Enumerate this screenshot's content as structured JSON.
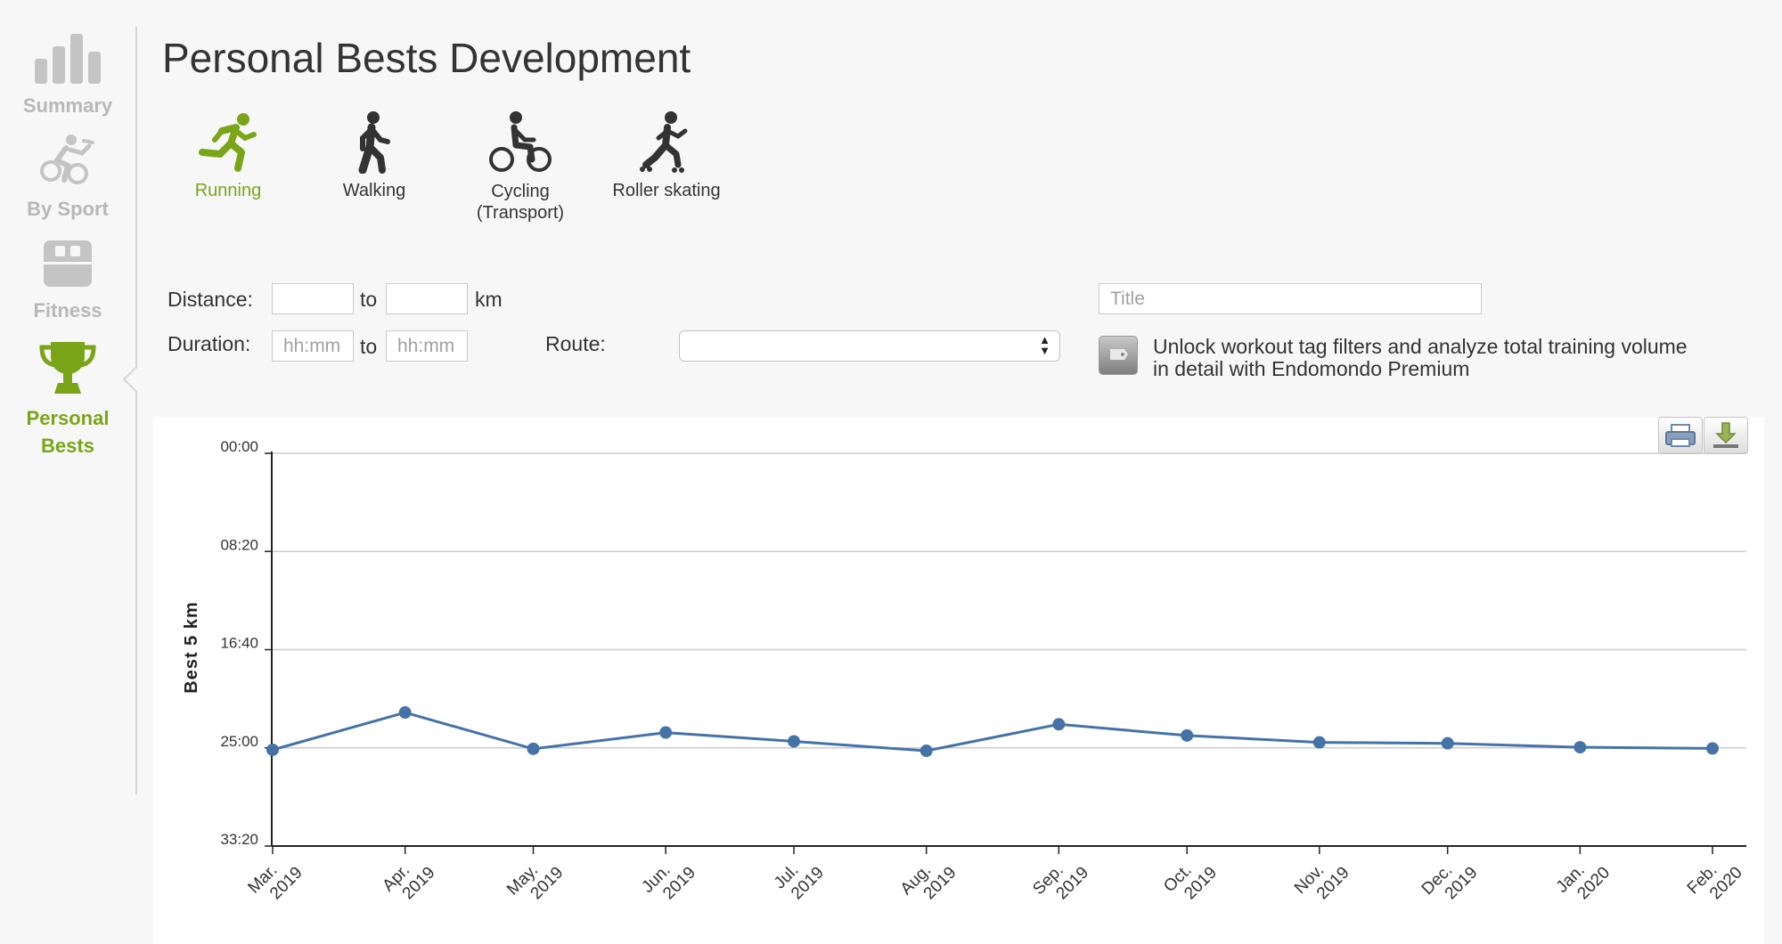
{
  "sidebar": {
    "items": [
      {
        "label": "Summary",
        "icon": "bar-chart-icon",
        "active": false
      },
      {
        "label": "By Sport",
        "icon": "triathlon-icon",
        "active": false
      },
      {
        "label": "Fitness",
        "icon": "scale-icon",
        "active": false
      },
      {
        "label_line1": "Personal",
        "label_line2": "Bests",
        "icon": "trophy-icon",
        "active": true
      }
    ]
  },
  "header": {
    "title": "Personal Bests Development"
  },
  "sports": [
    {
      "label": "Running",
      "icon": "running-icon",
      "active": true
    },
    {
      "label": "Walking",
      "icon": "walking-icon",
      "active": false
    },
    {
      "label_line1": "Cycling",
      "label_line2": "(Transport)",
      "icon": "cycling-icon",
      "active": false
    },
    {
      "label": "Roller skating",
      "icon": "roller-skating-icon",
      "active": false
    }
  ],
  "filters": {
    "distance_label": "Distance:",
    "to_label": "to",
    "km_label": "km",
    "duration_label": "Duration:",
    "duration_from_placeholder": "hh:mm",
    "duration_to_placeholder": "hh:mm",
    "route_label": "Route:",
    "route_value": "",
    "title_placeholder": "Title",
    "premium_text": "Unlock workout tag filters and analyze total training volume in detail with Endomondo Premium"
  },
  "toolbar": {
    "print_icon": "print-icon",
    "download_icon": "download-icon"
  },
  "colors": {
    "accent": "#7aa518",
    "series": "#4572a7",
    "inactive": "#b8b8b8"
  },
  "chart_data": {
    "type": "line",
    "title": "",
    "ylabel": "Best 5 km",
    "xlabel": "",
    "y_ticks": [
      "00:00",
      "08:20",
      "16:40",
      "25:00",
      "33:20"
    ],
    "y_tick_seconds": [
      0,
      500,
      1000,
      1500,
      2000
    ],
    "ylim_seconds": [
      0,
      2000
    ],
    "y_reversed": true,
    "grid": true,
    "categories": [
      [
        "Mar.",
        "2019"
      ],
      [
        "Apr.",
        "2019"
      ],
      [
        "May.",
        "2019"
      ],
      [
        "Jun.",
        "2019"
      ],
      [
        "Jul.",
        "2019"
      ],
      [
        "Aug.",
        "2019"
      ],
      [
        "Sep.",
        "2019"
      ],
      [
        "Oct.",
        "2019"
      ],
      [
        "Nov.",
        "2019"
      ],
      [
        "Dec.",
        "2019"
      ],
      [
        "Jan.",
        "2020"
      ],
      [
        "Feb.",
        "2020"
      ]
    ],
    "x_dates": [
      "2019-03-01",
      "2019-04-01",
      "2019-05-01",
      "2019-06-01",
      "2019-07-01",
      "2019-08-01",
      "2019-09-01",
      "2019-10-01",
      "2019-11-01",
      "2019-12-01",
      "2020-01-01",
      "2020-02-01"
    ],
    "series": [
      {
        "values_seconds": [
          1510,
          1320,
          1505,
          1422,
          1467,
          1515,
          1380,
          1437,
          1472,
          1477,
          1497,
          1503
        ]
      }
    ]
  }
}
